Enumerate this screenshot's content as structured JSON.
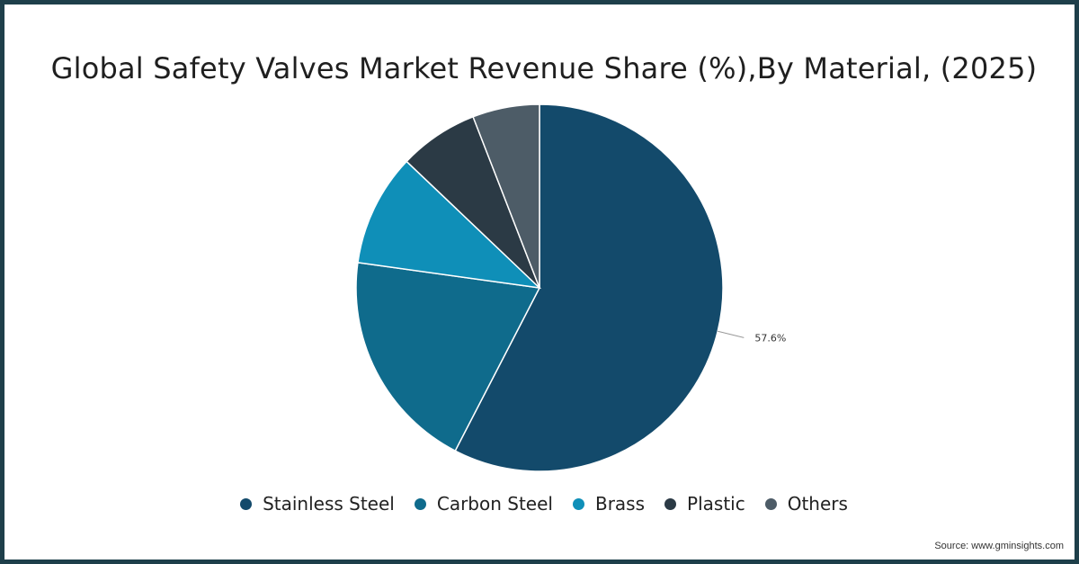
{
  "chart_data": {
    "type": "pie",
    "title": "Global Safety Valves Market Revenue Share (%),By Material, (2025)",
    "slices": [
      {
        "label": "Stainless Steel",
        "value": 57.6,
        "color": "#134a6b",
        "data_label": "57.6%"
      },
      {
        "label": "Carbon Steel",
        "value": 19.6,
        "color": "#0f6b8c",
        "data_label": ""
      },
      {
        "label": "Brass",
        "value": 9.9,
        "color": "#0f8fb8",
        "data_label": ""
      },
      {
        "label": "Plastic",
        "value": 7.0,
        "color": "#2b3a45",
        "data_label": ""
      },
      {
        "label": "Others",
        "value": 5.9,
        "color": "#4d5c67",
        "data_label": ""
      }
    ],
    "legend_position": "bottom"
  },
  "source": "Source: www.gminsights.com"
}
